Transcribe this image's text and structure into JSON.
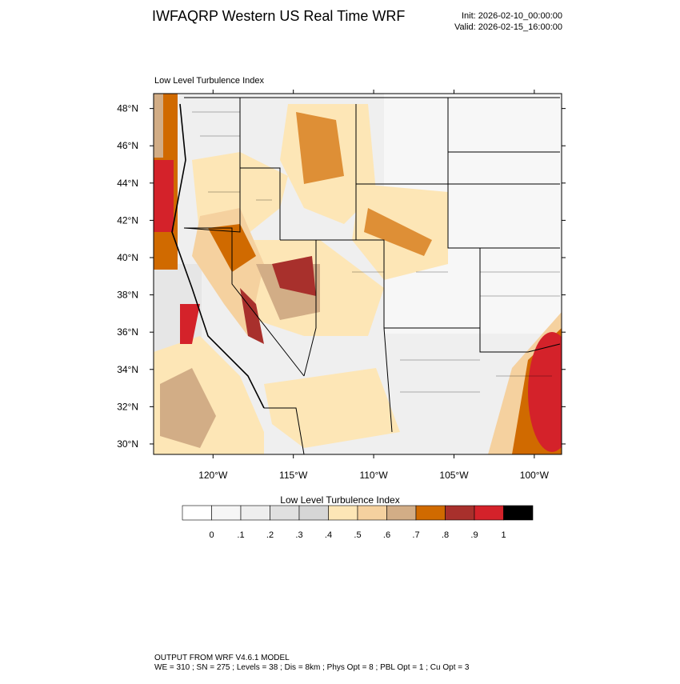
{
  "title": "IWFAQRP Western US Real Time WRF",
  "init": "Init: 2026-02-10_00:00:00",
  "valid": "Valid: 2026-02-15_16:00:00",
  "map": {
    "title": "Low Level Turbulence Index",
    "lat_range": [
      29.44,
      48.8
    ],
    "lon_range": [
      -123.7,
      -98.3
    ],
    "lat_ticks": [
      {
        "value": 30,
        "label": "30°N"
      },
      {
        "value": 32,
        "label": "32°N"
      },
      {
        "value": 34,
        "label": "34°N"
      },
      {
        "value": 36,
        "label": "36°N"
      },
      {
        "value": 38,
        "label": "38°N"
      },
      {
        "value": 40,
        "label": "40°N"
      },
      {
        "value": 42,
        "label": "42°N"
      },
      {
        "value": 44,
        "label": "44°N"
      },
      {
        "value": 46,
        "label": "46°N"
      },
      {
        "value": 48,
        "label": "48°N"
      }
    ],
    "lon_ticks": [
      {
        "value": -120,
        "label": "120°W"
      },
      {
        "value": -115,
        "label": "115°W"
      },
      {
        "value": -110,
        "label": "110°W"
      },
      {
        "value": -105,
        "label": "105°W"
      },
      {
        "value": -100,
        "label": "100°W"
      }
    ]
  },
  "colorbar": {
    "title": "Low Level Turbulence Index",
    "colors": [
      "#ffffff",
      "#f6f6f6",
      "#eeeeee",
      "#e0e0e0",
      "#d6d6d6",
      "#fde6b6",
      "#f5d19f",
      "#d2ad86",
      "#d06a00",
      "#a8302c",
      "#d4222a",
      "#000000"
    ],
    "ticks": [
      {
        "value": 0,
        "label": "0"
      },
      {
        "value": 0.1,
        "label": ".1"
      },
      {
        "value": 0.2,
        "label": ".2"
      },
      {
        "value": 0.3,
        "label": ".3"
      },
      {
        "value": 0.4,
        "label": ".4"
      },
      {
        "value": 0.5,
        "label": ".5"
      },
      {
        "value": 0.6,
        "label": ".6"
      },
      {
        "value": 0.7,
        "label": ".7"
      },
      {
        "value": 0.8,
        "label": ".8"
      },
      {
        "value": 0.9,
        "label": ".9"
      },
      {
        "value": 1,
        "label": "1"
      }
    ]
  },
  "footer": {
    "line1": "OUTPUT FROM WRF V4.6.1 MODEL",
    "line2": "WE = 310 ; SN = 275 ; Levels = 38 ; Dis = 8km ; Phys Opt = 8 ; PBL Opt = 1 ; Cu Opt = 3"
  }
}
